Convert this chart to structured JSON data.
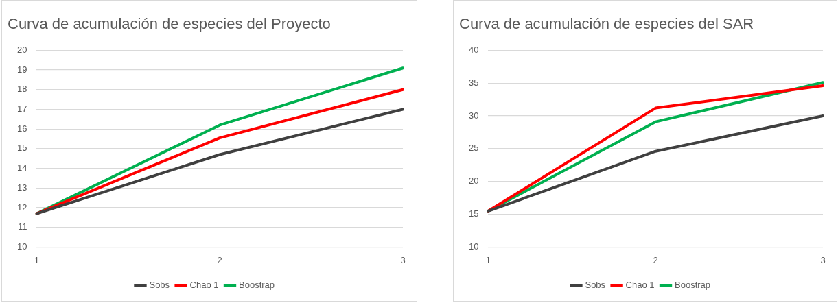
{
  "chart_data": [
    {
      "type": "line",
      "title": "Curva de acumulación de especies del Proyecto",
      "categories": [
        "1",
        "2",
        "3"
      ],
      "series": [
        {
          "name": "Sobs",
          "color": "#404040",
          "values": [
            11.7,
            14.7,
            17.0
          ]
        },
        {
          "name": "Chao 1",
          "color": "#ff0000",
          "values": [
            11.7,
            15.55,
            18.0
          ]
        },
        {
          "name": "Boostrap",
          "color": "#00b050",
          "values": [
            11.7,
            16.2,
            19.1
          ]
        }
      ],
      "ylim": [
        10,
        20
      ],
      "yticks": [
        10,
        11,
        12,
        13,
        14,
        15,
        16,
        17,
        18,
        19,
        20
      ],
      "grid": "y",
      "legend": "bottom",
      "marker": "none",
      "line_style": "solid"
    },
    {
      "type": "line",
      "title": "Curva de acumulación de especies del SAR",
      "categories": [
        "1",
        "2",
        "3"
      ],
      "series": [
        {
          "name": "Sobs",
          "color": "#404040",
          "values": [
            15.5,
            24.6,
            30.0
          ]
        },
        {
          "name": "Chao 1",
          "color": "#ff0000",
          "values": [
            15.5,
            31.2,
            34.6
          ]
        },
        {
          "name": "Boostrap",
          "color": "#00b050",
          "values": [
            15.5,
            29.1,
            35.1
          ]
        }
      ],
      "ylim": [
        10,
        40
      ],
      "yticks": [
        10,
        15,
        20,
        25,
        30,
        35,
        40
      ],
      "grid": "y",
      "legend": "bottom",
      "marker": "none",
      "line_style": "solid"
    }
  ]
}
